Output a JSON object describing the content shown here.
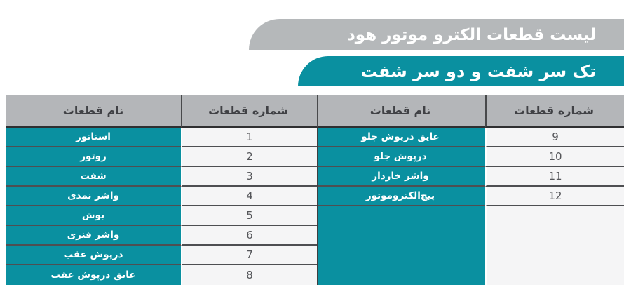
{
  "title_banner": {
    "label": "لیست قطعات الکترو موتور هود"
  },
  "subtitle_banner": {
    "label": "تک سر شفت و دو سر شفت"
  },
  "colors": {
    "teal": "#0a90a0",
    "banner_gray": "#b5b8ba",
    "header_gray": "#b4b6b9",
    "light_cell": "#f5f5f6",
    "separator": "#4e4f52",
    "text_on_teal": "#ffffff"
  },
  "table": {
    "header_name": "نام قطعات",
    "header_number": "شماره قطعات",
    "left_rows": [
      {
        "name": "استاتور",
        "number": "1"
      },
      {
        "name": "روتور",
        "number": "2"
      },
      {
        "name": "شفت",
        "number": "3"
      },
      {
        "name": "واشر نمدی",
        "number": "4"
      },
      {
        "name": "بوش",
        "number": "5"
      },
      {
        "name": "واشر فنری",
        "number": "6"
      },
      {
        "name": "درپوش عقب",
        "number": "7"
      },
      {
        "name": "عایق درپوش عقب",
        "number": "8"
      }
    ],
    "right_rows": [
      {
        "name": "عایق درپوش جلو",
        "number": "9"
      },
      {
        "name": "درپوش جلو",
        "number": "10"
      },
      {
        "name": "واشر خاردار",
        "number": "11"
      },
      {
        "name": "پیچ‌الکتروموتور",
        "number": "12"
      }
    ]
  }
}
